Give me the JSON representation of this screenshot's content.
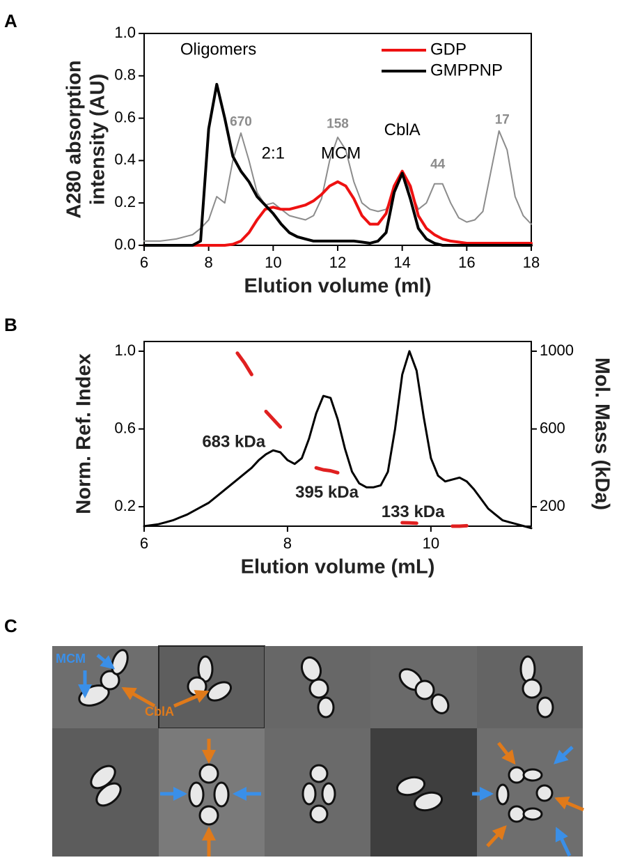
{
  "chart_data": [
    {
      "type": "line",
      "label": "A",
      "xlabel": "Elution volume (ml)",
      "ylabel": [
        "A280 absorption",
        "intensity (AU)"
      ],
      "xlim": [
        6,
        18
      ],
      "ylim": [
        0,
        1.0
      ],
      "xticks": [
        6,
        8,
        10,
        12,
        14,
        16,
        18
      ],
      "yticks": [
        {
          "value": 0,
          "label": "0.0"
        },
        0.2,
        0.4,
        0.6,
        0.8,
        {
          "value": 1.0,
          "label": "1.0"
        }
      ],
      "legend": "top-right",
      "x": [
        6,
        6.25,
        6.5,
        6.75,
        7,
        7.25,
        7.5,
        7.75,
        8,
        8.25,
        8.5,
        8.75,
        9,
        9.25,
        9.5,
        9.75,
        10,
        10.25,
        10.5,
        10.75,
        11,
        11.25,
        11.5,
        11.75,
        12,
        12.25,
        12.5,
        12.75,
        13,
        13.25,
        13.5,
        13.75,
        14,
        14.25,
        14.5,
        14.75,
        15,
        15.25,
        15.5,
        15.75,
        16,
        16.25,
        16.5,
        16.75,
        17,
        17.25,
        17.5,
        17.75,
        18
      ],
      "series": [
        {
          "color": "#8c8c8c",
          "width": 2,
          "values": [
            0.02,
            0.02,
            0.02,
            0.025,
            0.03,
            0.04,
            0.05,
            0.08,
            0.12,
            0.23,
            0.2,
            0.4,
            0.53,
            0.4,
            0.25,
            0.19,
            0.2,
            0.17,
            0.14,
            0.13,
            0.12,
            0.14,
            0.22,
            0.4,
            0.51,
            0.45,
            0.3,
            0.2,
            0.17,
            0.16,
            0.17,
            0.25,
            0.33,
            0.26,
            0.17,
            0.2,
            0.29,
            0.29,
            0.2,
            0.13,
            0.11,
            0.12,
            0.16,
            0.35,
            0.54,
            0.45,
            0.23,
            0.14,
            0.1
          ]
        },
        {
          "name": "GDP",
          "color": "#ee1111",
          "width": 4,
          "values": [
            0,
            0,
            0,
            0,
            0,
            0,
            0,
            0,
            0,
            0,
            0,
            0.005,
            0.02,
            0.06,
            0.12,
            0.17,
            0.18,
            0.17,
            0.17,
            0.18,
            0.19,
            0.21,
            0.24,
            0.28,
            0.3,
            0.28,
            0.22,
            0.14,
            0.1,
            0.1,
            0.15,
            0.28,
            0.35,
            0.28,
            0.14,
            0.08,
            0.05,
            0.03,
            0.02,
            0.015,
            0.01,
            0.01,
            0.01,
            0.01,
            0.01,
            0.01,
            0.01,
            0.01,
            0.01
          ]
        },
        {
          "name": "GMPPNP",
          "color": "#000000",
          "width": 4,
          "values": [
            0,
            0,
            0,
            0,
            0,
            0,
            0,
            0.02,
            0.55,
            0.76,
            0.6,
            0.42,
            0.35,
            0.3,
            0.23,
            0.19,
            0.15,
            0.1,
            0.06,
            0.04,
            0.03,
            0.02,
            0.02,
            0.02,
            0.02,
            0.02,
            0.02,
            0.015,
            0.01,
            0.02,
            0.06,
            0.25,
            0.34,
            0.22,
            0.08,
            0.03,
            0.01,
            0,
            0,
            0,
            0,
            0,
            0,
            0,
            0,
            0,
            0,
            0,
            0
          ]
        }
      ],
      "annotations": [
        {
          "text": "Oligomers",
          "x": 8.3,
          "y": 0.92,
          "color": "#000000"
        },
        {
          "text": "670",
          "x": 9,
          "y": 0.58,
          "color": "#8c8c8c"
        },
        {
          "text": "2:1",
          "x": 10,
          "y": 0.43,
          "color": "#000000"
        },
        {
          "text": "158",
          "x": 12,
          "y": 0.57,
          "color": "#8c8c8c"
        },
        {
          "text": "MCM",
          "x": 12.1,
          "y": 0.43,
          "color": "#000000"
        },
        {
          "text": "CblA",
          "x": 14,
          "y": 0.54,
          "color": "#000000"
        },
        {
          "text": "44",
          "x": 15.1,
          "y": 0.38,
          "color": "#8c8c8c"
        },
        {
          "text": "17",
          "x": 17.1,
          "y": 0.59,
          "color": "#8c8c8c"
        }
      ]
    },
    {
      "type": "line",
      "label": "B",
      "xlabel": "Elution volume (mL)",
      "ylabel": [
        "Norm. Ref. Index"
      ],
      "y2label": "Mol. Mass (kDa)",
      "xlim": [
        6,
        11.4
      ],
      "ylim": [
        0.1,
        1.05
      ],
      "y2lim": [
        100,
        1050
      ],
      "xticks": [
        6,
        8,
        10
      ],
      "yticks": [
        0.2,
        0.6,
        {
          "value": 1.0,
          "label": "1.0"
        }
      ],
      "y2ticks": [
        200,
        600,
        1000
      ],
      "x": [
        6,
        6.1,
        6.2,
        6.3,
        6.4,
        6.5,
        6.6,
        6.7,
        6.8,
        6.9,
        7,
        7.1,
        7.2,
        7.3,
        7.4,
        7.5,
        7.6,
        7.7,
        7.8,
        7.9,
        8,
        8.1,
        8.2,
        8.3,
        8.4,
        8.5,
        8.6,
        8.7,
        8.8,
        8.9,
        9,
        9.1,
        9.2,
        9.3,
        9.4,
        9.5,
        9.6,
        9.7,
        9.8,
        9.9,
        10,
        10.1,
        10.2,
        10.3,
        10.4,
        10.5,
        10.6,
        10.7,
        10.8,
        10.9,
        11,
        11.1,
        11.2,
        11.3,
        11.4
      ],
      "series": [
        {
          "color": "#000000",
          "width": 3,
          "values": [
            0.1,
            0.105,
            0.11,
            0.12,
            0.13,
            0.145,
            0.16,
            0.18,
            0.2,
            0.22,
            0.25,
            0.28,
            0.31,
            0.34,
            0.37,
            0.4,
            0.44,
            0.47,
            0.49,
            0.48,
            0.44,
            0.42,
            0.45,
            0.55,
            0.68,
            0.77,
            0.76,
            0.65,
            0.5,
            0.38,
            0.32,
            0.3,
            0.3,
            0.31,
            0.38,
            0.6,
            0.88,
            1.0,
            0.9,
            0.66,
            0.45,
            0.36,
            0.33,
            0.34,
            0.35,
            0.33,
            0.29,
            0.24,
            0.19,
            0.16,
            0.13,
            0.12,
            0.11,
            0.1,
            0.09
          ]
        },
        {
          "color": "#e02020",
          "width": 5,
          "axis": "y2",
          "values": [
            null,
            null,
            null,
            null,
            null,
            null,
            null,
            null,
            null,
            null,
            null,
            null,
            null,
            990,
            940,
            880,
            null,
            690,
            650,
            610,
            null,
            null,
            null,
            null,
            400,
            390,
            385,
            375,
            null,
            null,
            null,
            null,
            null,
            null,
            null,
            null,
            118,
            117,
            115,
            null,
            null,
            null,
            null,
            100,
            100,
            102,
            null,
            null,
            null,
            null,
            null,
            null,
            null,
            null,
            null
          ]
        }
      ],
      "annotations": [
        {
          "text": "683 kDa",
          "x": 7.25,
          "y": 0.53,
          "color": "#222222"
        },
        {
          "text": "395 kDa",
          "x": 8.55,
          "y": 0.27,
          "color": "#222222"
        },
        {
          "text": "133 kDa",
          "x": 9.75,
          "y": 0.17,
          "color": "#222222"
        }
      ]
    }
  ],
  "panel_c": {
    "label": "C",
    "mcm": "MCM",
    "cbla": "CblA"
  }
}
